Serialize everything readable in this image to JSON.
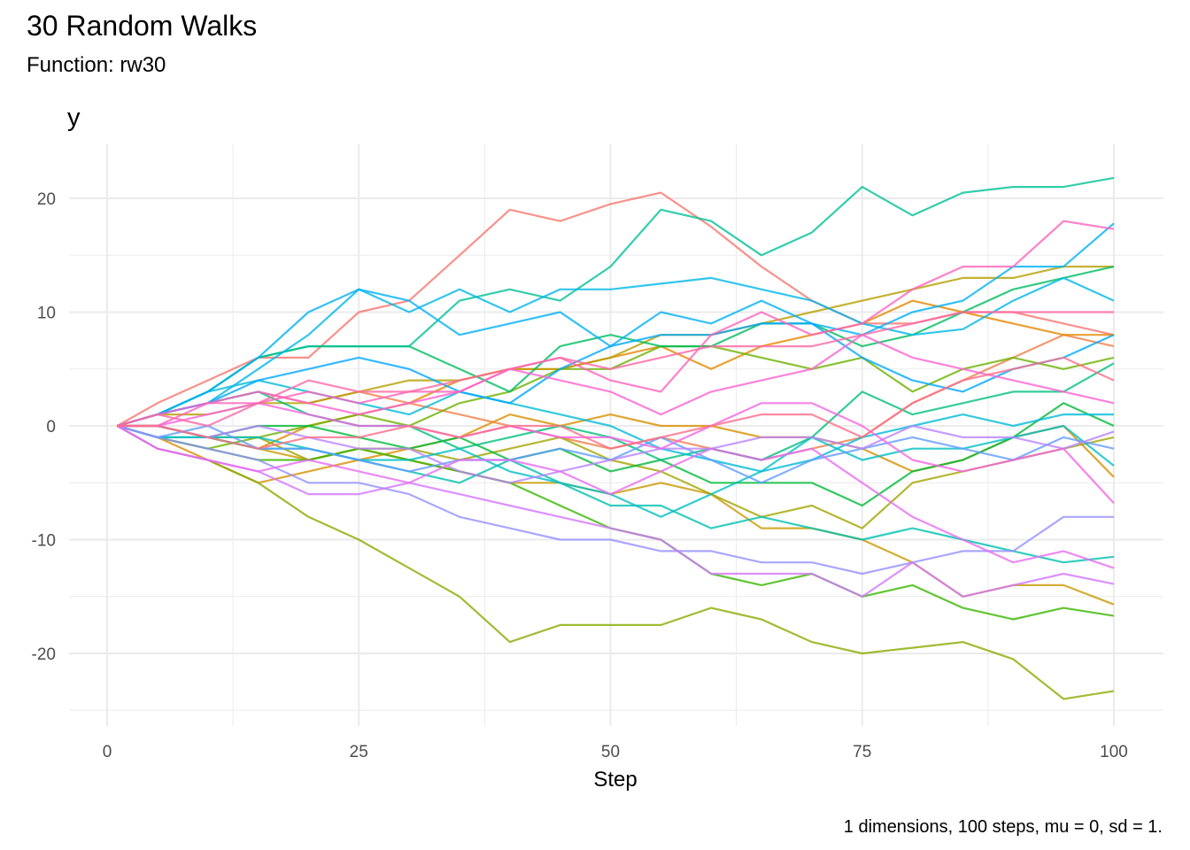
{
  "chart_data": {
    "type": "line",
    "title": "30 Random Walks",
    "subtitle": "Function: rw30",
    "ylabel": "y",
    "xlabel": "Step",
    "caption": "1 dimensions, 100 steps, mu = 0, sd = 1.",
    "xlim": [
      -4,
      105
    ],
    "ylim": [
      -26,
      24.5
    ],
    "x_ticks": [
      0,
      25,
      50,
      75,
      100
    ],
    "x_tick_labels": [
      "0",
      "25",
      "50",
      "75",
      "100"
    ],
    "y_ticks": [
      -20,
      -10,
      0,
      10,
      20
    ],
    "y_tick_labels": [
      "-20",
      "-10",
      "0",
      "10",
      "20"
    ],
    "grid": true,
    "legend": "none",
    "palette": {
      "type": "hue",
      "hue_start": 15,
      "hue_end": 375,
      "chroma": 100,
      "luminance": 65,
      "opacity": 0.8
    },
    "x": [
      1,
      5,
      10,
      15,
      20,
      25,
      30,
      35,
      40,
      45,
      50,
      55,
      60,
      65,
      70,
      75,
      80,
      85,
      90,
      95,
      100
    ],
    "series": [
      {
        "values": [
          0,
          2,
          4,
          6,
          6,
          10,
          11,
          15,
          19,
          18,
          19.5,
          20.5,
          17.5,
          14,
          11,
          9,
          9,
          10,
          10,
          9,
          8
        ]
      },
      {
        "values": [
          0,
          1,
          2,
          3,
          2,
          3,
          2,
          1,
          0,
          -1,
          -2,
          -1,
          -2,
          -3,
          -2,
          -1,
          2,
          4,
          6,
          8,
          7
        ]
      },
      {
        "values": [
          0,
          0,
          -1,
          -2,
          0,
          1,
          2,
          4,
          5,
          5,
          6,
          7,
          5,
          7,
          8,
          9,
          11,
          10,
          9,
          8,
          8
        ]
      },
      {
        "values": [
          0,
          -1,
          -3,
          -5,
          -4,
          -3,
          -2,
          -1,
          1,
          0,
          1,
          0,
          0,
          -1,
          -1,
          -2,
          -4,
          -3,
          -1,
          0,
          -4.5
        ]
      },
      {
        "values": [
          0,
          0,
          -1,
          -2,
          -3,
          -2,
          -3,
          -4,
          -5,
          -5,
          -6,
          -5,
          -6,
          -9,
          -9,
          -10,
          -12,
          -15,
          -14,
          -14,
          -15.7
        ]
      },
      {
        "values": [
          0,
          1,
          1,
          2,
          2,
          3,
          4,
          4,
          5,
          5,
          6,
          8,
          8,
          9,
          10,
          11,
          12,
          13,
          13,
          14,
          14
        ]
      },
      {
        "values": [
          0,
          0,
          -1,
          -1,
          -3,
          -2,
          -2,
          -3,
          -2,
          -1,
          -3,
          -4,
          -6,
          -8,
          -7,
          -9,
          -5,
          -4,
          -3,
          -2,
          -1
        ]
      },
      {
        "values": [
          0,
          -2,
          -3,
          -5,
          -8,
          -10,
          -12.5,
          -15,
          -19,
          -17.5,
          -17.5,
          -17.5,
          -16,
          -17,
          -19,
          -20,
          -19.5,
          -19,
          -20.5,
          -24,
          -23.3
        ]
      },
      {
        "values": [
          0,
          -1,
          -2,
          -1,
          0,
          1,
          0,
          2,
          3,
          5,
          5,
          7,
          7,
          6,
          5,
          6,
          3,
          5,
          6,
          5,
          6
        ]
      },
      {
        "values": [
          0,
          -1,
          -2,
          -3,
          -3,
          -2,
          -3,
          -4,
          -5,
          -7,
          -9,
          -10,
          -13,
          -14,
          -13,
          -15,
          -14,
          -16,
          -17,
          -16,
          -16.7
        ]
      },
      {
        "values": [
          0,
          0,
          -1,
          0,
          0,
          -1,
          -2,
          -1,
          -3,
          -2,
          -4,
          -3,
          -5,
          -5,
          -5,
          -7,
          -4,
          -3,
          -1,
          2,
          0
        ]
      },
      {
        "values": [
          0,
          1,
          3,
          6,
          7,
          7,
          7,
          5,
          3,
          7,
          8,
          7,
          7,
          9,
          9,
          7,
          8,
          10,
          12,
          13,
          14
        ]
      },
      {
        "values": [
          0,
          1,
          2,
          3,
          1,
          0,
          0,
          -2,
          -1,
          0,
          -1,
          -3,
          -2,
          -3,
          -1,
          3,
          1,
          2,
          3,
          3,
          5.5
        ]
      },
      {
        "values": [
          0,
          1,
          3,
          6,
          7,
          7,
          7,
          11,
          12,
          11,
          14,
          19,
          18,
          15,
          17,
          21,
          18.5,
          20.5,
          21,
          21,
          21.8
        ]
      },
      {
        "values": [
          0,
          -1,
          -1,
          -2,
          -2,
          -3,
          -4,
          -5,
          -3,
          -5,
          -7,
          -7,
          -9,
          -8,
          -9,
          -10,
          -9,
          -10,
          -11,
          -12,
          -11.5
        ]
      },
      {
        "values": [
          0,
          -1,
          -1,
          -1,
          -2,
          -3,
          -3,
          -2,
          -4,
          -5,
          -6,
          -8,
          -6,
          -4,
          -1,
          -3,
          -2,
          -2,
          -1,
          0,
          -3.5
        ]
      },
      {
        "values": [
          0,
          1,
          3,
          4,
          3,
          2,
          1,
          3,
          2,
          1,
          0,
          -2,
          -3,
          -4,
          -3,
          -1,
          0,
          1,
          0,
          1,
          1
        ]
      },
      {
        "values": [
          0,
          1,
          2,
          5,
          8,
          12,
          10,
          12,
          10,
          12,
          12,
          12.5,
          13,
          12,
          11,
          9,
          8,
          8.5,
          11,
          13,
          11
        ]
      },
      {
        "values": [
          0,
          1,
          3,
          6,
          10,
          12,
          11,
          8,
          9,
          10,
          7,
          10,
          9,
          11,
          9,
          8,
          10,
          11,
          14,
          14,
          17.8
        ]
      },
      {
        "values": [
          0,
          1,
          2,
          4,
          5,
          6,
          5,
          3,
          2,
          5,
          7,
          8,
          8,
          9,
          9,
          6,
          4,
          3,
          5,
          6,
          8
        ]
      },
      {
        "values": [
          0,
          -1,
          0,
          -2,
          -2,
          -3,
          -4,
          -3,
          -3,
          -2,
          -3,
          -1,
          -3,
          -5,
          -3,
          -2,
          -1,
          -2,
          -3,
          -1,
          -2
        ]
      },
      {
        "values": [
          0,
          -1,
          -2,
          -3,
          -5,
          -5,
          -6,
          -8,
          -9,
          -10,
          -10,
          -11,
          -11,
          -12,
          -12,
          -13,
          -12,
          -11,
          -11,
          -8,
          -8
        ]
      },
      {
        "values": [
          0,
          0,
          -1,
          0,
          -1,
          -2,
          -2,
          -4,
          -5,
          -4,
          -3,
          -2,
          -2,
          -1,
          -1,
          -2,
          0,
          -1,
          -1,
          -2,
          -0.5
        ]
      },
      {
        "values": [
          0,
          -2,
          -3,
          -4,
          -6,
          -6,
          -5,
          -6,
          -7,
          -8,
          -9,
          -10,
          -13,
          -13,
          -13,
          -15,
          -12,
          -15,
          -14,
          -13,
          -13.9
        ]
      },
      {
        "values": [
          0,
          -2,
          -3,
          -4,
          -3,
          -4,
          -5,
          -3,
          -3,
          -4,
          -6,
          -4,
          -2,
          -3,
          -2,
          -5,
          -8,
          -10,
          -12,
          -11,
          -12.5
        ]
      },
      {
        "values": [
          0,
          0,
          1,
          2,
          1,
          0,
          0,
          -1,
          0,
          -1,
          -1,
          -2,
          0,
          2,
          2,
          0,
          -3,
          -4,
          -3,
          -2,
          -6.8
        ]
      },
      {
        "values": [
          0,
          1,
          2,
          3,
          2,
          1,
          2,
          3,
          5,
          4,
          3,
          1,
          3,
          4,
          5,
          8,
          6,
          5,
          4,
          3,
          2
        ]
      },
      {
        "values": [
          0,
          0,
          2,
          2,
          3,
          2,
          3,
          3,
          5,
          6,
          4,
          3,
          8,
          10,
          8,
          9,
          12,
          14,
          14,
          18,
          17.3
        ]
      },
      {
        "values": [
          0,
          1,
          0,
          2,
          4,
          3,
          3,
          4,
          5,
          6,
          5,
          6,
          7,
          7,
          7,
          8,
          9,
          10,
          10,
          10,
          10
        ]
      },
      {
        "values": [
          0,
          0,
          -1,
          -2,
          -1,
          -1,
          0,
          -1,
          0,
          0,
          -2,
          -1,
          0,
          1,
          1,
          -1,
          2,
          4,
          5,
          6,
          4
        ]
      }
    ]
  }
}
